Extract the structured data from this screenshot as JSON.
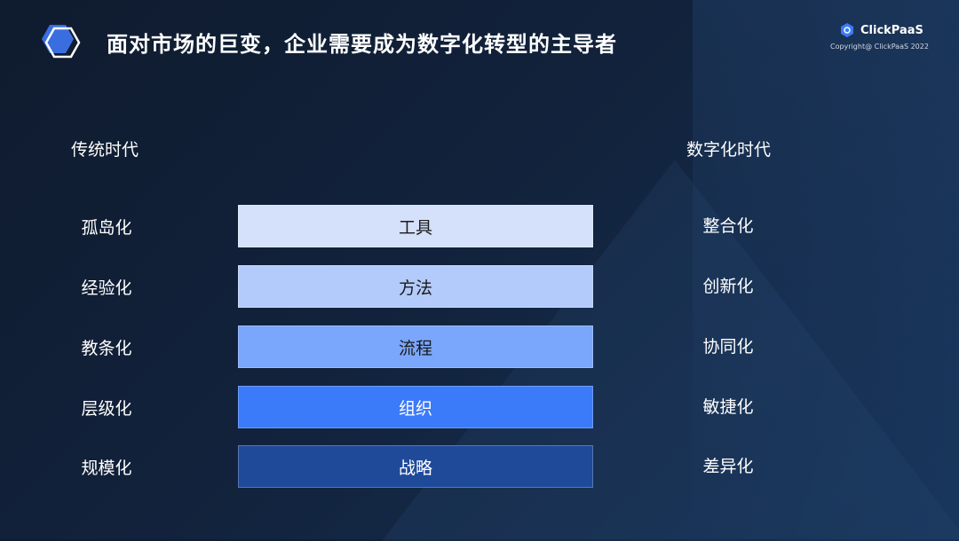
{
  "title": "面对市场的巨变，企业需要成为数字化转型的主导者",
  "logo": {
    "name": "ClickPaaS",
    "copyright": "Copyright@ ClickPaaS 2022"
  },
  "left_header": "传统时代",
  "right_header": "数字化时代",
  "rows": [
    {
      "left": "孤岛化",
      "center": "工具",
      "right": "整合化",
      "color": "#d5e0fa",
      "text_color": "#1a1a1a"
    },
    {
      "left": "经验化",
      "center": "方法",
      "right": "创新化",
      "color": "#b3cbfb",
      "text_color": "#1a1a1a"
    },
    {
      "left": "教条化",
      "center": "流程",
      "right": "协同化",
      "color": "#7aa6fb",
      "text_color": "#1a1a1a"
    },
    {
      "left": "层级化",
      "center": "组织",
      "right": "敏捷化",
      "color": "#3b7bfa",
      "text_color": "#ffffff"
    },
    {
      "left": "规模化",
      "center": "战略",
      "right": "差异化",
      "color": "#1f4a9a",
      "text_color": "#ffffff"
    }
  ]
}
